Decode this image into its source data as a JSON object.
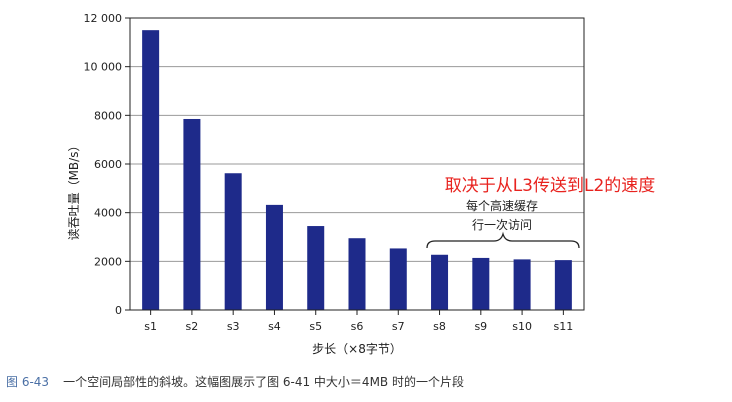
{
  "chart_data": {
    "type": "bar",
    "categories": [
      "s1",
      "s2",
      "s3",
      "s4",
      "s5",
      "s6",
      "s7",
      "s8",
      "s9",
      "s10",
      "s11"
    ],
    "values": [
      11500,
      7850,
      5620,
      4320,
      3450,
      2950,
      2530,
      2270,
      2140,
      2080,
      2050
    ],
    "ylim": [
      0,
      12000
    ],
    "yticks": [
      0,
      2000,
      4000,
      6000,
      8000,
      10000,
      12000
    ],
    "ytick_labels": [
      "0",
      "2000",
      "4000",
      "6000",
      "8000",
      "10 000",
      "12 000"
    ],
    "ylabel": "读吞吐量（MB/s）",
    "xlabel": "步长（×8字节）",
    "grid": true,
    "bar_color": "#1e2a8a",
    "annotations": {
      "red_note": "取决于从L3传送到L2的速度",
      "red_color": "#e8231f",
      "brace_line1": "每个高速缓存",
      "brace_line2": "行一次访问"
    }
  },
  "caption": {
    "figure_number": "图 6-43",
    "text": "一个空间局部性的斜坡。这幅图展示了图 6-41 中大小＝4MB 时的一个片段"
  }
}
